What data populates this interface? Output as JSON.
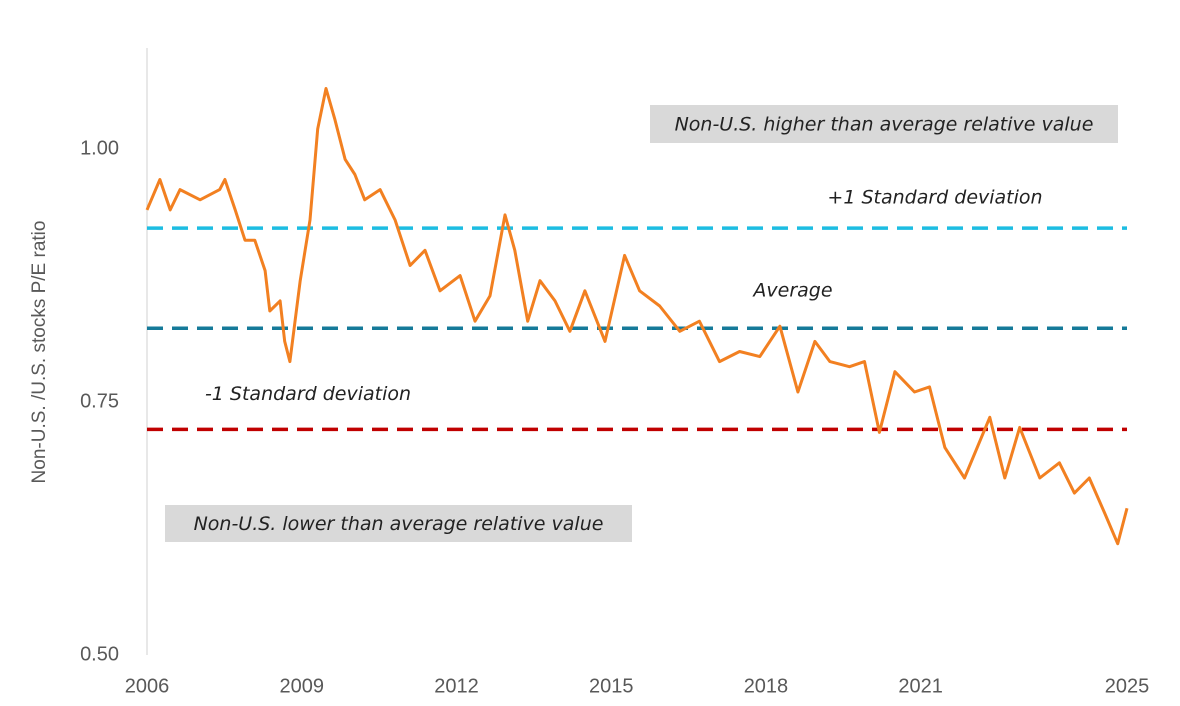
{
  "chart_data": {
    "type": "line",
    "y_label": "Non-U.S. /U.S. stocks P/E ratio",
    "xlim": [
      2006,
      2025
    ],
    "xticks": [
      2006,
      2009,
      2012,
      2015,
      2018,
      2021,
      2025
    ],
    "ylim": [
      0.5,
      1.1
    ],
    "yticks": [
      {
        "value": 0.5,
        "label": "0.50"
      },
      {
        "value": 0.75,
        "label": "0.75"
      },
      {
        "value": 1.0,
        "label": "1.00"
      }
    ],
    "series": [
      {
        "color": "#f28021",
        "x": [
          2006.0,
          2006.25,
          2006.45,
          2006.64,
          2007.03,
          2007.41,
          2007.51,
          2007.71,
          2007.9,
          2008.09,
          2008.29,
          2008.38,
          2008.58,
          2008.67,
          2008.77,
          2008.97,
          2009.16,
          2009.31,
          2009.47,
          2009.64,
          2009.84,
          2010.03,
          2010.22,
          2010.52,
          2010.81,
          2011.1,
          2011.39,
          2011.68,
          2012.07,
          2012.36,
          2012.65,
          2012.94,
          2013.13,
          2013.38,
          2013.62,
          2013.91,
          2014.2,
          2014.49,
          2014.88,
          2015.26,
          2015.55,
          2015.94,
          2016.33,
          2016.71,
          2017.1,
          2017.49,
          2017.88,
          2018.27,
          2018.62,
          2018.95,
          2019.24,
          2019.62,
          2019.91,
          2020.2,
          2020.5,
          2020.88,
          2021.17,
          2021.47,
          2021.85,
          2022.34,
          2022.63,
          2022.92,
          2023.31,
          2023.69,
          2023.98,
          2024.27,
          2024.57,
          2024.82,
          2025.0
        ],
        "values": [
          0.94,
          0.97,
          0.94,
          0.96,
          0.95,
          0.96,
          0.97,
          0.94,
          0.91,
          0.91,
          0.88,
          0.84,
          0.85,
          0.81,
          0.79,
          0.87,
          0.93,
          1.02,
          1.06,
          1.03,
          0.99,
          0.975,
          0.95,
          0.96,
          0.93,
          0.885,
          0.9,
          0.86,
          0.875,
          0.83,
          0.855,
          0.935,
          0.9,
          0.83,
          0.87,
          0.85,
          0.82,
          0.86,
          0.81,
          0.895,
          0.86,
          0.845,
          0.82,
          0.83,
          0.79,
          0.8,
          0.795,
          0.825,
          0.76,
          0.81,
          0.79,
          0.785,
          0.79,
          0.72,
          0.78,
          0.76,
          0.765,
          0.705,
          0.675,
          0.735,
          0.675,
          0.725,
          0.675,
          0.69,
          0.66,
          0.675,
          0.64,
          0.61,
          0.645
        ]
      }
    ],
    "reference_lines": [
      {
        "label": "+1 Standard deviation",
        "value": 0.922,
        "color": "#1dbde2"
      },
      {
        "label": "Average",
        "value": 0.823,
        "color": "#157a99"
      },
      {
        "label": "-1 Standard deviation",
        "value": 0.723,
        "color": "#c00000"
      }
    ],
    "annotations": [
      "Non-U.S. higher than average relative value",
      "Non-U.S. lower than average relative value"
    ]
  }
}
